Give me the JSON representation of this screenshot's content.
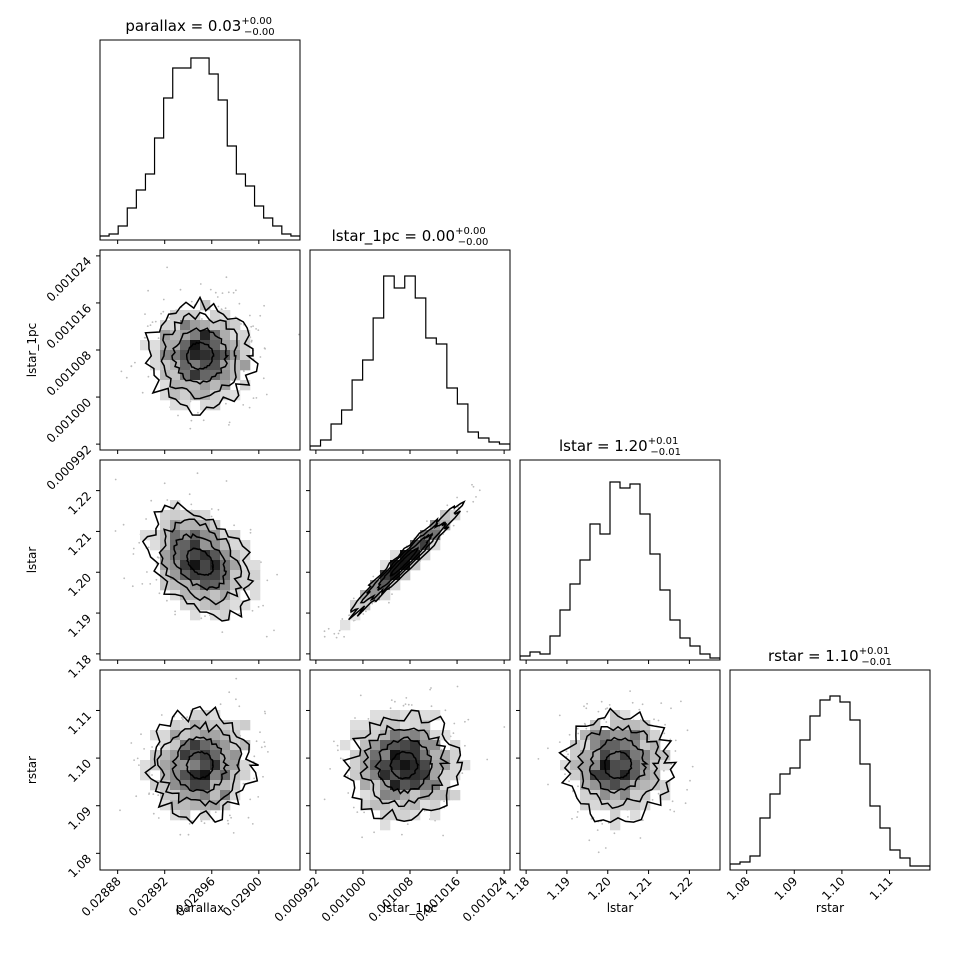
{
  "chart_data": {
    "type": "corner",
    "parameters": [
      {
        "name": "parallax",
        "title_prefix": "parallax = 0.03",
        "err_plus": "+0.00",
        "err_minus": "−0.00",
        "range": [
          0.028865,
          0.029035
        ],
        "ticks": [
          "0.02888",
          "0.02892",
          "0.02896",
          "0.02900"
        ],
        "tick_values": [
          0.02888,
          0.02892,
          0.02896,
          0.029
        ],
        "median": 0.02895,
        "sigma": 2.2e-05
      },
      {
        "name": "lstar_1pc",
        "title_prefix": "lstar_1pc = 0.00",
        "err_plus": "+0.00",
        "err_minus": "−0.00",
        "range": [
          0.000991,
          0.001025
        ],
        "ticks": [
          "0.000992",
          "0.001000",
          "0.001008",
          "0.001016",
          "0.001024"
        ],
        "tick_values": [
          0.000992,
          0.001,
          0.001008,
          0.001016,
          0.001024
        ],
        "median": 0.001007,
        "sigma": 4.5e-06
      },
      {
        "name": "lstar",
        "title_prefix": "lstar = 1.20",
        "err_plus": "+0.01",
        "err_minus": "−0.01",
        "range": [
          1.1785,
          1.2275
        ],
        "ticks": [
          "1.18",
          "1.19",
          "1.20",
          "1.21",
          "1.22"
        ],
        "tick_values": [
          1.18,
          1.19,
          1.2,
          1.21,
          1.22
        ],
        "median": 1.2025,
        "sigma": 0.0065
      },
      {
        "name": "rstar",
        "title_prefix": "rstar = 1.10",
        "err_plus": "+0.01",
        "err_minus": "−0.01",
        "range": [
          1.0765,
          1.1185
        ],
        "ticks": [
          "1.08",
          "1.09",
          "1.10",
          "1.11"
        ],
        "tick_values": [
          1.08,
          1.09,
          1.1,
          1.11
        ],
        "median": 1.0985,
        "sigma": 0.0055
      }
    ],
    "histograms": [
      [
        0.02,
        0.03,
        0.07,
        0.16,
        0.25,
        0.33,
        0.51,
        0.71,
        0.86,
        0.86,
        0.91,
        0.91,
        0.83,
        0.7,
        0.47,
        0.33,
        0.27,
        0.17,
        0.11,
        0.07,
        0.03,
        0.02
      ],
      [
        0.02,
        0.05,
        0.13,
        0.2,
        0.35,
        0.45,
        0.66,
        0.87,
        0.81,
        0.87,
        0.76,
        0.56,
        0.53,
        0.31,
        0.23,
        0.09,
        0.06,
        0.04,
        0.03
      ],
      [
        0.02,
        0.04,
        0.03,
        0.12,
        0.25,
        0.38,
        0.5,
        0.68,
        0.63,
        0.89,
        0.86,
        0.88,
        0.73,
        0.53,
        0.35,
        0.2,
        0.11,
        0.07,
        0.03,
        0.01
      ],
      [
        0.03,
        0.04,
        0.07,
        0.26,
        0.38,
        0.48,
        0.51,
        0.65,
        0.77,
        0.85,
        0.87,
        0.84,
        0.75,
        0.53,
        0.32,
        0.21,
        0.1,
        0.06,
        0.02,
        0.02
      ]
    ],
    "correlations": {
      "1_0": 0.0,
      "2_0": -0.35,
      "2_1": 0.97,
      "3_0": 0.0,
      "3_1": 0.05,
      "3_2": 0.05
    }
  }
}
